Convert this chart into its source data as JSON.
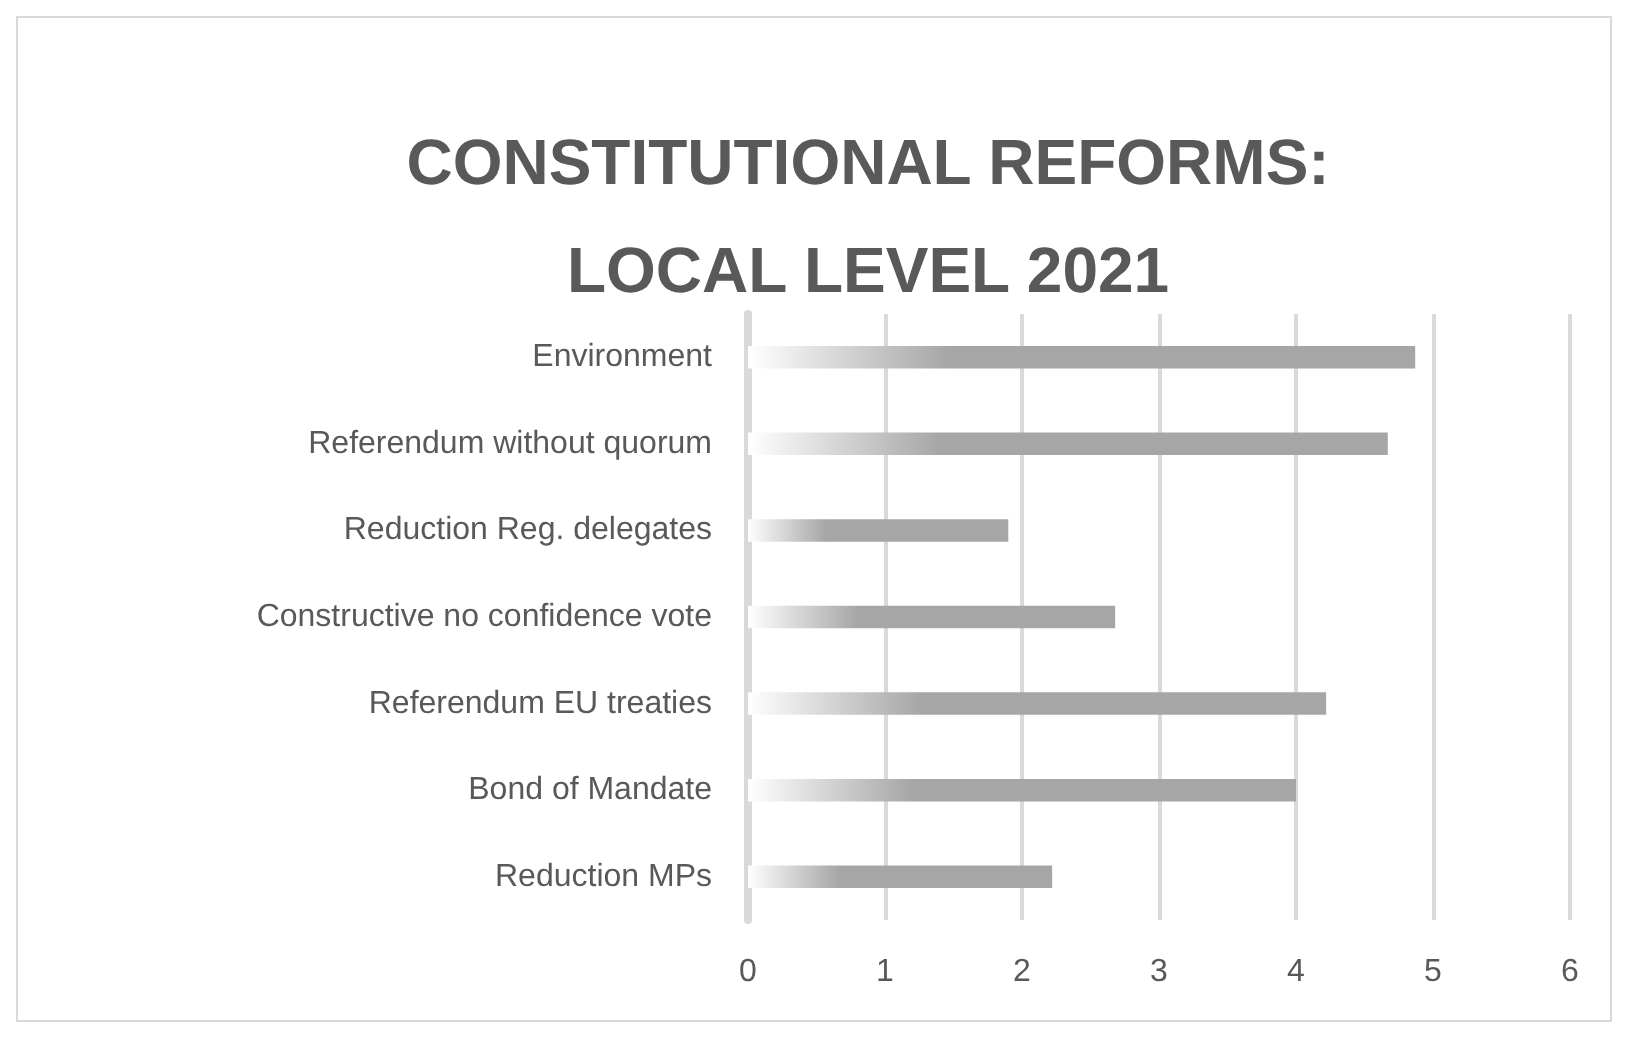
{
  "chart_data": {
    "type": "bar",
    "orientation": "horizontal",
    "title": "CONSTITUTIONAL REFORMS:\nLOCAL LEVEL 2021",
    "categories": [
      "Environment",
      "Referendum without quorum",
      "Reduction Reg. delegates",
      "Constructive no confidence vote",
      "Referendum EU treaties",
      "Bond of Mandate",
      "Reduction MPs"
    ],
    "values": [
      4.87,
      4.67,
      1.9,
      2.68,
      4.22,
      4.0,
      2.22
    ],
    "color": "#a6a6a6",
    "xlim": [
      0,
      6
    ],
    "xticks": [
      0,
      1,
      2,
      3,
      4,
      5,
      6
    ],
    "grid": "x"
  }
}
